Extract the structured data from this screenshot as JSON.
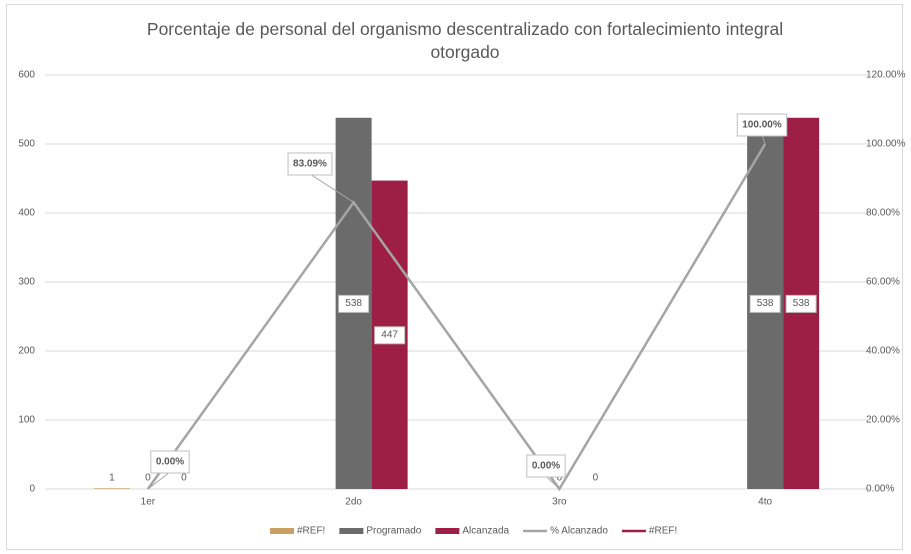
{
  "chart_data": {
    "type": "bar",
    "title": "Porcentaje de personal del organismo descentralizado con fortalecimiento integral otorgado",
    "categories": [
      "1er",
      "2do",
      "3ro",
      "4to"
    ],
    "series": [
      {
        "name": "#REF!",
        "type": "bar",
        "color": "#c9a063",
        "values": [
          1,
          null,
          null,
          null
        ]
      },
      {
        "name": "Programado",
        "type": "bar",
        "color": "#6b6b6b",
        "values": [
          0,
          538,
          0,
          538
        ]
      },
      {
        "name": "Alcanzada",
        "type": "bar",
        "color": "#9e1f45",
        "values": [
          0,
          447,
          0,
          538
        ]
      },
      {
        "name": "% Alcanzado",
        "type": "line",
        "axis": "y2",
        "color": "#a5a5a5",
        "values": [
          0,
          83.09,
          0,
          100
        ],
        "value_labels": [
          "0.00%",
          "83.09%",
          "0.00%",
          "100.00%"
        ]
      },
      {
        "name": "#REF!",
        "type": "line",
        "axis": "y2",
        "color": "#9e1f45",
        "values": [
          null,
          null,
          null,
          null
        ]
      }
    ],
    "ylim": [
      0,
      600
    ],
    "yticks": [
      0,
      100,
      200,
      300,
      400,
      500,
      600
    ],
    "y2lim": [
      0,
      120
    ],
    "y2ticks": [
      {
        "value": 0,
        "label": "0.00%"
      },
      {
        "value": 20,
        "label": "20.00%"
      },
      {
        "value": 40,
        "label": "40.00%"
      },
      {
        "value": 60,
        "label": "60.00%"
      },
      {
        "value": 80,
        "label": "80.00%"
      },
      {
        "value": 100,
        "label": "100.00%"
      },
      {
        "value": 120,
        "label": "120.00%"
      }
    ],
    "grid": true
  }
}
